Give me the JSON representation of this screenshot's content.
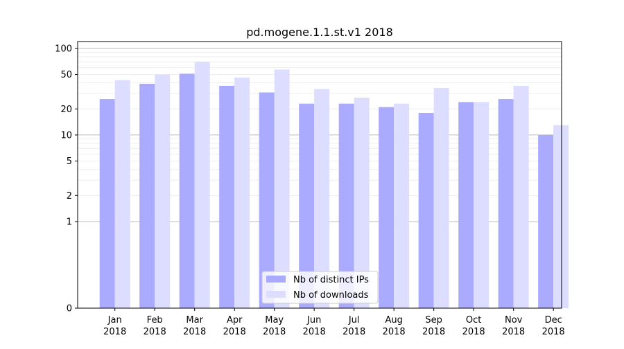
{
  "chart_data": {
    "type": "bar",
    "title": "pd.mogene.1.1.st.v1 2018",
    "xlabel": "",
    "ylabel": "",
    "yscale": "symlog",
    "ylim": [
      0,
      120
    ],
    "yticks": [
      0,
      1,
      2,
      5,
      10,
      20,
      50,
      100
    ],
    "grid": true,
    "legend_position": "bottom-center",
    "categories": [
      "Jan\n2018",
      "Feb\n2018",
      "Mar\n2018",
      "Apr\n2018",
      "May\n2018",
      "Jun\n2018",
      "Jul\n2018",
      "Aug\n2018",
      "Sep\n2018",
      "Oct\n2018",
      "Nov\n2018",
      "Dec\n2018"
    ],
    "series": [
      {
        "name": "Nb of distinct IPs",
        "color": "#aaaaff",
        "values": [
          26,
          39,
          51,
          37,
          31,
          23,
          23,
          21,
          18,
          24,
          26,
          10
        ]
      },
      {
        "name": "Nb of downloads",
        "color": "#ddddff",
        "values": [
          43,
          50,
          70,
          46,
          57,
          34,
          27,
          23,
          35,
          24,
          37,
          13
        ]
      }
    ]
  }
}
